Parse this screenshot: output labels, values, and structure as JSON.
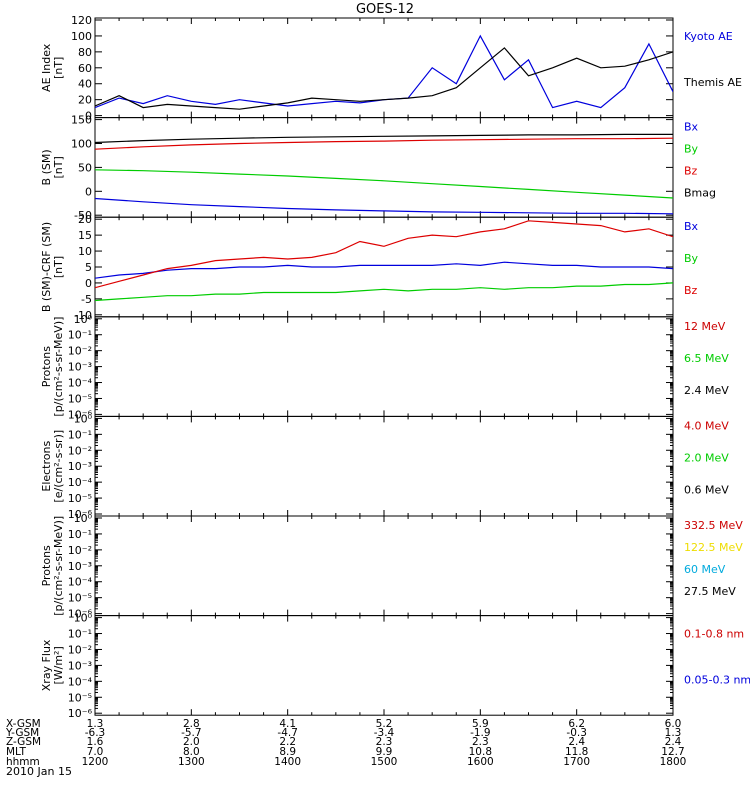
{
  "title": "GOES-12",
  "date_label": "2010 Jan 15",
  "ephemeris": {
    "rows": [
      {
        "label": "X-GSM",
        "values": [
          "1.3",
          "2.8",
          "4.1",
          "5.2",
          "5.9",
          "6.2",
          "6.0"
        ]
      },
      {
        "label": "Y-GSM",
        "values": [
          "-6.3",
          "-5.7",
          "-4.7",
          "-3.4",
          "-1.9",
          "-0.3",
          "1.3"
        ]
      },
      {
        "label": "Z-GSM",
        "values": [
          "1.6",
          "2.0",
          "2.2",
          "2.3",
          "2.3",
          "2.4",
          "2.4"
        ]
      },
      {
        "label": "MLT",
        "values": [
          "7.0",
          "8.0",
          "8.9",
          "9.9",
          "10.8",
          "11.8",
          "12.7"
        ]
      },
      {
        "label": "hhmm",
        "values": [
          "1200",
          "1300",
          "1400",
          "1500",
          "1600",
          "1700",
          "1800"
        ]
      }
    ]
  },
  "chart_data": [
    {
      "type": "line",
      "ylabel_lines": [
        "AE Index",
        "[nT]"
      ],
      "ylim": [
        0,
        120
      ],
      "yticks": [
        0,
        20,
        40,
        60,
        80,
        100,
        120
      ],
      "ytick_labels": [
        "0",
        "20",
        "40",
        "60",
        "80",
        "100",
        "120"
      ],
      "x": [
        1200,
        1215,
        1230,
        1245,
        1300,
        1315,
        1330,
        1345,
        1400,
        1415,
        1430,
        1445,
        1500,
        1515,
        1530,
        1545,
        1600,
        1615,
        1630,
        1645,
        1700,
        1715,
        1730,
        1745,
        1800
      ],
      "series": [
        {
          "name": "Kyoto AE",
          "color": "#0000dd",
          "values": [
            10,
            22,
            15,
            25,
            18,
            14,
            20,
            16,
            12,
            15,
            18,
            16,
            20,
            22,
            60,
            40,
            100,
            45,
            70,
            10,
            18,
            10,
            35,
            90,
            30
          ]
        },
        {
          "name": "Themis AE",
          "color": "#000000",
          "values": [
            12,
            25,
            10,
            14,
            12,
            10,
            8,
            12,
            16,
            22,
            20,
            18,
            20,
            22,
            25,
            35,
            60,
            85,
            50,
            60,
            72,
            60,
            62,
            70,
            80
          ]
        }
      ]
    },
    {
      "type": "line",
      "ylabel_lines": [
        "B (SM)",
        "[nT]"
      ],
      "ylim": [
        -50,
        150
      ],
      "yticks": [
        -50,
        0,
        50,
        100,
        150
      ],
      "ytick_labels": [
        "-50",
        "0",
        "50",
        "100",
        "150"
      ],
      "x": [
        1200,
        1230,
        1300,
        1330,
        1400,
        1430,
        1500,
        1530,
        1600,
        1630,
        1700,
        1730,
        1800
      ],
      "series": [
        {
          "name": "Bx",
          "color": "#0000dd",
          "values": [
            -15,
            -22,
            -28,
            -32,
            -36,
            -39,
            -41,
            -43,
            -44,
            -45,
            -46,
            -46,
            -47
          ]
        },
        {
          "name": "By",
          "color": "#00cc00",
          "values": [
            45,
            43,
            40,
            36,
            32,
            27,
            22,
            16,
            10,
            4,
            -2,
            -8,
            -14
          ]
        },
        {
          "name": "Bz",
          "color": "#dd0000",
          "values": [
            88,
            93,
            97,
            100,
            102,
            104,
            105,
            107,
            108,
            109,
            110,
            110,
            111
          ]
        },
        {
          "name": "Bmag",
          "color": "#000000",
          "values": [
            102,
            106,
            109,
            111,
            113,
            114,
            115,
            116,
            117,
            118,
            118,
            119,
            119
          ]
        }
      ]
    },
    {
      "type": "line",
      "ylabel_lines": [
        "B (SM)-CRF (SM)",
        "[nT]"
      ],
      "ylim": [
        -10,
        20
      ],
      "yticks": [
        -10,
        -5,
        0,
        5,
        10,
        15,
        20
      ],
      "ytick_labels": [
        "-10",
        "-5",
        "0",
        "5",
        "10",
        "15",
        "20"
      ],
      "x": [
        1200,
        1215,
        1230,
        1245,
        1300,
        1315,
        1330,
        1345,
        1400,
        1415,
        1430,
        1445,
        1500,
        1515,
        1530,
        1545,
        1600,
        1615,
        1630,
        1645,
        1700,
        1715,
        1730,
        1745,
        1800
      ],
      "series": [
        {
          "name": "Bx",
          "color": "#0000dd",
          "values": [
            1.5,
            2.5,
            3.0,
            4.0,
            4.5,
            4.5,
            5.0,
            5.0,
            5.5,
            5.0,
            5.0,
            5.5,
            5.5,
            5.5,
            5.5,
            6.0,
            5.5,
            6.5,
            6.0,
            5.5,
            5.5,
            5.0,
            5.0,
            5.0,
            4.5
          ]
        },
        {
          "name": "By",
          "color": "#00cc00",
          "values": [
            -5.5,
            -5.0,
            -4.5,
            -4.0,
            -4.0,
            -3.5,
            -3.5,
            -3.0,
            -3.0,
            -3.0,
            -3.0,
            -2.5,
            -2.0,
            -2.5,
            -2.0,
            -2.0,
            -1.5,
            -2.0,
            -1.5,
            -1.5,
            -1.0,
            -1.0,
            -0.5,
            -0.5,
            0.0
          ]
        },
        {
          "name": "Bz",
          "color": "#dd0000",
          "values": [
            -1.5,
            0.5,
            2.5,
            4.5,
            5.5,
            7.0,
            7.5,
            8.0,
            7.5,
            8.0,
            9.5,
            13.0,
            11.5,
            14.0,
            15.0,
            14.5,
            16.0,
            17.0,
            19.5,
            19.0,
            18.5,
            18.0,
            16.0,
            17.0,
            14.5
          ]
        }
      ]
    },
    {
      "type": "line",
      "scale": "log",
      "ylabel_lines": [
        "Protons",
        "[p/(cm²-s-sr-MeV)]"
      ],
      "ylim_exp": [
        -6,
        0
      ],
      "yticks_exp": [
        -6,
        -5,
        -4,
        -3,
        -2,
        -1,
        0
      ],
      "ytick_labels": [
        "10⁻⁶",
        "10⁻⁵",
        "10⁻⁴",
        "10⁻³",
        "10⁻²",
        "10⁻¹",
        "10⁰"
      ],
      "series": [
        {
          "name": "12 MeV",
          "color": "#cc0000",
          "values": []
        },
        {
          "name": "6.5 MeV",
          "color": "#00cc00",
          "values": []
        },
        {
          "name": "2.4 MeV",
          "color": "#000000",
          "values": []
        }
      ]
    },
    {
      "type": "line",
      "scale": "log",
      "ylabel_lines": [
        "Electrons",
        "[e/(cm²-s-sr)]"
      ],
      "ylim_exp": [
        -6,
        0
      ],
      "yticks_exp": [
        -6,
        -5,
        -4,
        -3,
        -2,
        -1,
        0
      ],
      "ytick_labels": [
        "10⁻⁶",
        "10⁻⁵",
        "10⁻⁴",
        "10⁻³",
        "10⁻²",
        "10⁻¹",
        "10⁰"
      ],
      "series": [
        {
          "name": "4.0 MeV",
          "color": "#cc0000",
          "values": []
        },
        {
          "name": "2.0 MeV",
          "color": "#00cc00",
          "values": []
        },
        {
          "name": "0.6 MeV",
          "color": "#000000",
          "values": []
        }
      ]
    },
    {
      "type": "line",
      "scale": "log",
      "ylabel_lines": [
        "Protons",
        "[p/(cm²-s-sr-MeV)]"
      ],
      "ylim_exp": [
        -6,
        0
      ],
      "yticks_exp": [
        -6,
        -5,
        -4,
        -3,
        -2,
        -1,
        0
      ],
      "ytick_labels": [
        "10⁻⁶",
        "10⁻⁵",
        "10⁻⁴",
        "10⁻³",
        "10⁻²",
        "10⁻¹",
        "10⁰"
      ],
      "series": [
        {
          "name": "332.5 MeV",
          "color": "#cc0000",
          "values": []
        },
        {
          "name": "122.5 MeV",
          "color": "#eedd00",
          "values": []
        },
        {
          "name": "60 MeV",
          "color": "#00aadd",
          "values": []
        },
        {
          "name": "27.5 MeV",
          "color": "#000000",
          "values": []
        }
      ]
    },
    {
      "type": "line",
      "scale": "log",
      "ylabel_lines": [
        "Xray Flux",
        "[W/m²]"
      ],
      "ylim_exp": [
        -6,
        0
      ],
      "yticks_exp": [
        -6,
        -5,
        -4,
        -3,
        -2,
        -1,
        0
      ],
      "ytick_labels": [
        "10⁻⁶",
        "10⁻⁵",
        "10⁻⁴",
        "10⁻³",
        "10⁻²",
        "10⁻¹",
        "10⁰"
      ],
      "series": [
        {
          "name": "0.1-0.8 nm",
          "color": "#cc0000",
          "values": []
        },
        {
          "name": "0.05-0.3 nm",
          "color": "#0000dd",
          "values": []
        }
      ]
    }
  ]
}
